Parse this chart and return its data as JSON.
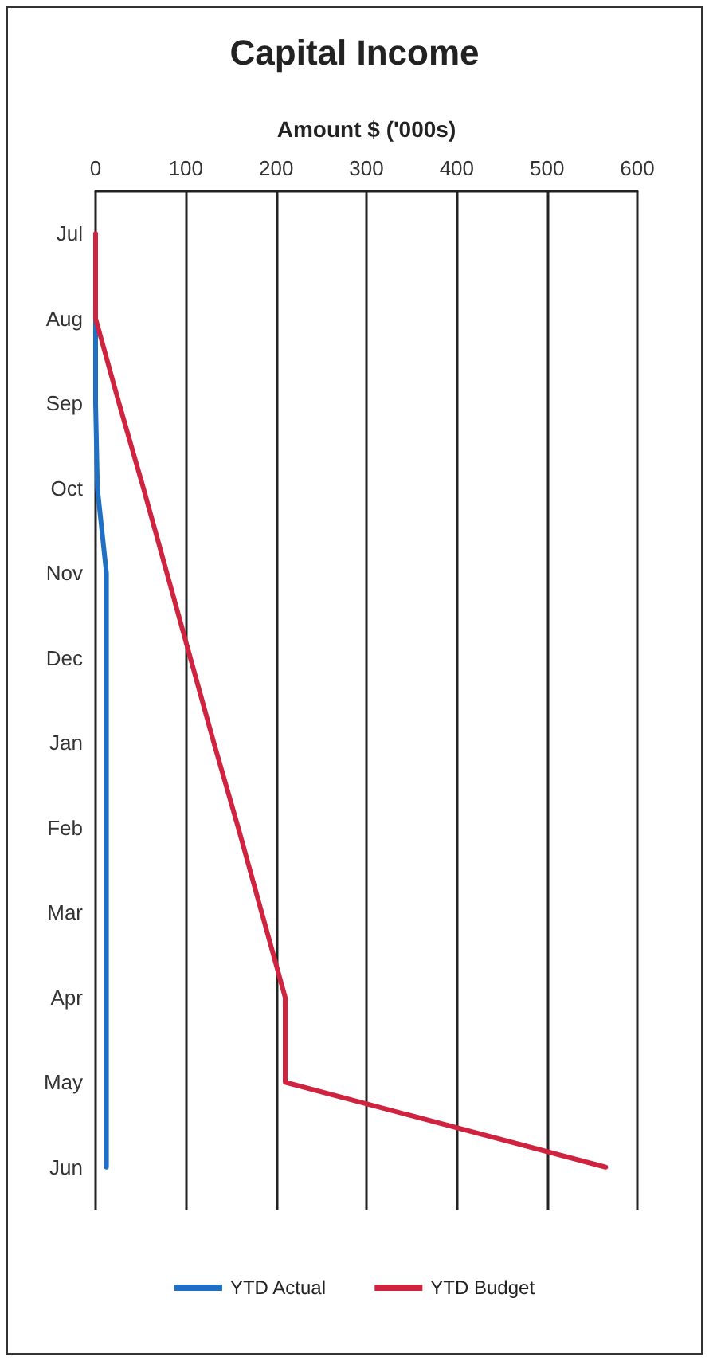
{
  "chart_data": {
    "type": "line",
    "title": "Capital Income",
    "xlabel": "Amount $ ('000s)",
    "orientation": "horizontal",
    "categories": [
      "Jul",
      "Aug",
      "Sep",
      "Oct",
      "Nov",
      "Dec",
      "Jan",
      "Feb",
      "Mar",
      "Apr",
      "May",
      "Jun"
    ],
    "series": [
      {
        "name": "YTD Actual",
        "color": "#1f6fc5",
        "values": [
          null,
          0,
          0,
          2,
          12,
          12,
          12,
          12,
          12,
          12,
          12,
          12
        ]
      },
      {
        "name": "YTD Budget",
        "color": "#d0233f",
        "values": [
          0,
          0,
          26,
          53,
          79,
          105,
          131,
          158,
          184,
          210,
          210,
          565
        ]
      }
    ],
    "xlim": [
      0,
      600
    ],
    "xticks": [
      0,
      100,
      200,
      300,
      400,
      500,
      600
    ],
    "grid": "x",
    "legend": "bottom",
    "marker": "none",
    "line_style": "solid"
  }
}
